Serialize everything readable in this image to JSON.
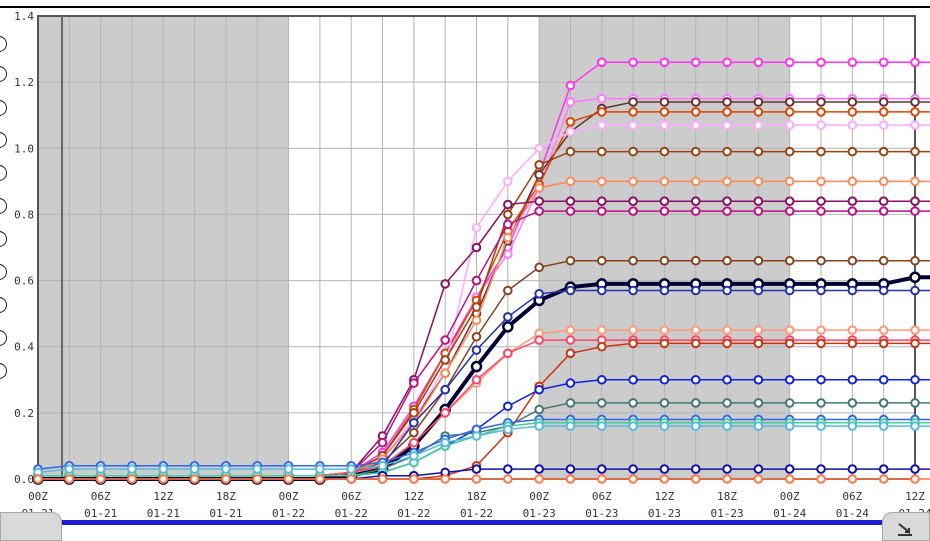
{
  "chart_data": {
    "type": "line",
    "title": "",
    "xlabel": "",
    "ylabel": "",
    "ylim": [
      0,
      1.4
    ],
    "yticks": [
      "0.0",
      "0.2",
      "0.4",
      "0.6",
      "0.8",
      "1.0",
      "1.2",
      "1.4"
    ],
    "xtick_labels": [
      {
        "hour": "00Z",
        "date": "01-21"
      },
      {
        "hour": "06Z",
        "date": "01-21"
      },
      {
        "hour": "12Z",
        "date": "01-21"
      },
      {
        "hour": "18Z",
        "date": "01-21"
      },
      {
        "hour": "00Z",
        "date": "01-22"
      },
      {
        "hour": "06Z",
        "date": "01-22"
      },
      {
        "hour": "12Z",
        "date": "01-22"
      },
      {
        "hour": "18Z",
        "date": "01-22"
      },
      {
        "hour": "00Z",
        "date": "01-23"
      },
      {
        "hour": "06Z",
        "date": "01-23"
      },
      {
        "hour": "12Z",
        "date": "01-23"
      },
      {
        "hour": "18Z",
        "date": "01-23"
      },
      {
        "hour": "00Z",
        "date": "01-24"
      },
      {
        "hour": "06Z",
        "date": "01-24"
      },
      {
        "hour": "12Z",
        "date": "01-24"
      }
    ],
    "x_step_hours": 3,
    "night_shading": [
      [
        0,
        8
      ],
      [
        16,
        24
      ],
      [
        32,
        40
      ],
      [
        48,
        56
      ]
    ],
    "colors": {
      "shading": "#cccccc",
      "grid": "#b4b4b4",
      "frame": "#555555",
      "accent_band": "#1c1cd0"
    },
    "grid": true,
    "series": [
      {
        "color": "#ff33ee",
        "values": [
          0.01,
          0.01,
          0.01,
          0.01,
          0.01,
          0.01,
          0.01,
          0.01,
          0.01,
          0.01,
          0.02,
          0.08,
          0.22,
          0.38,
          0.55,
          0.7,
          0.92,
          1.19,
          1.26,
          1.26,
          1.26,
          1.26,
          1.26,
          1.26,
          1.26,
          1.26,
          1.26,
          1.26,
          1.26,
          1.26
        ]
      },
      {
        "color": "#ff77ff",
        "values": [
          0.01,
          0.01,
          0.01,
          0.01,
          0.01,
          0.01,
          0.01,
          0.01,
          0.01,
          0.01,
          0.02,
          0.07,
          0.2,
          0.36,
          0.55,
          0.68,
          0.88,
          1.14,
          1.15,
          1.15,
          1.15,
          1.15,
          1.15,
          1.15,
          1.15,
          1.15,
          1.15,
          1.15,
          1.15,
          1.15
        ]
      },
      {
        "color": "#663333",
        "values": [
          0.01,
          0.01,
          0.01,
          0.01,
          0.01,
          0.01,
          0.01,
          0.01,
          0.01,
          0.01,
          0.02,
          0.06,
          0.18,
          0.32,
          0.5,
          0.72,
          0.92,
          1.05,
          1.12,
          1.14,
          1.14,
          1.14,
          1.14,
          1.14,
          1.14,
          1.14,
          1.14,
          1.14,
          1.14,
          1.14
        ]
      },
      {
        "color": "#dd4400",
        "values": [
          0.01,
          0.01,
          0.01,
          0.01,
          0.01,
          0.01,
          0.01,
          0.01,
          0.01,
          0.01,
          0.02,
          0.07,
          0.21,
          0.38,
          0.54,
          0.75,
          0.89,
          1.08,
          1.11,
          1.11,
          1.11,
          1.11,
          1.11,
          1.11,
          1.11,
          1.11,
          1.11,
          1.11,
          1.11,
          1.11
        ]
      },
      {
        "color": "#ffaaff",
        "values": [
          0.01,
          0.01,
          0.01,
          0.01,
          0.01,
          0.01,
          0.01,
          0.01,
          0.01,
          0.01,
          0.02,
          0.06,
          0.18,
          0.34,
          0.76,
          0.9,
          1.0,
          1.05,
          1.07,
          1.07,
          1.07,
          1.07,
          1.07,
          1.07,
          1.07,
          1.07,
          1.07,
          1.07,
          1.07,
          1.07
        ]
      },
      {
        "color": "#994411",
        "values": [
          0.01,
          0.01,
          0.01,
          0.01,
          0.01,
          0.01,
          0.01,
          0.01,
          0.01,
          0.01,
          0.02,
          0.07,
          0.2,
          0.36,
          0.52,
          0.8,
          0.95,
          0.99,
          0.99,
          0.99,
          0.99,
          0.99,
          0.99,
          0.99,
          0.99,
          0.99,
          0.99,
          0.99,
          0.99,
          0.99
        ]
      },
      {
        "color": "#ff8855",
        "values": [
          0.01,
          0.01,
          0.01,
          0.01,
          0.01,
          0.01,
          0.01,
          0.01,
          0.01,
          0.01,
          0.02,
          0.06,
          0.17,
          0.32,
          0.48,
          0.73,
          0.88,
          0.9,
          0.9,
          0.9,
          0.9,
          0.9,
          0.9,
          0.9,
          0.9,
          0.9,
          0.9,
          0.9,
          0.9,
          0.9
        ]
      },
      {
        "color": "#881166",
        "values": [
          0.01,
          0.01,
          0.01,
          0.01,
          0.01,
          0.01,
          0.01,
          0.01,
          0.01,
          0.01,
          0.02,
          0.13,
          0.3,
          0.59,
          0.7,
          0.83,
          0.84,
          0.84,
          0.84,
          0.84,
          0.84,
          0.84,
          0.84,
          0.84,
          0.84,
          0.84,
          0.84,
          0.84,
          0.84,
          0.84
        ]
      },
      {
        "color": "#bb1188",
        "values": [
          0.01,
          0.01,
          0.01,
          0.01,
          0.01,
          0.01,
          0.01,
          0.01,
          0.01,
          0.01,
          0.02,
          0.11,
          0.29,
          0.42,
          0.6,
          0.77,
          0.81,
          0.81,
          0.81,
          0.81,
          0.81,
          0.81,
          0.81,
          0.81,
          0.81,
          0.81,
          0.81,
          0.81,
          0.81,
          0.81
        ]
      },
      {
        "color": "#884422",
        "values": [
          0.01,
          0.01,
          0.01,
          0.01,
          0.01,
          0.01,
          0.01,
          0.01,
          0.01,
          0.01,
          0.02,
          0.05,
          0.14,
          0.27,
          0.43,
          0.57,
          0.64,
          0.66,
          0.66,
          0.66,
          0.66,
          0.66,
          0.66,
          0.66,
          0.66,
          0.66,
          0.66,
          0.66,
          0.66,
          0.66
        ]
      },
      {
        "color": "#000033",
        "width": 4,
        "values": [
          0.0,
          0.0,
          0.0,
          0.0,
          0.0,
          0.0,
          0.0,
          0.0,
          0.0,
          0.0,
          0.01,
          0.03,
          0.1,
          0.21,
          0.34,
          0.46,
          0.54,
          0.58,
          0.59,
          0.59,
          0.59,
          0.59,
          0.59,
          0.59,
          0.59,
          0.59,
          0.59,
          0.59,
          0.61,
          0.61
        ]
      },
      {
        "color": "#2233aa",
        "values": [
          0.01,
          0.01,
          0.01,
          0.01,
          0.01,
          0.01,
          0.01,
          0.01,
          0.01,
          0.01,
          0.02,
          0.04,
          0.17,
          0.27,
          0.39,
          0.49,
          0.56,
          0.57,
          0.57,
          0.57,
          0.57,
          0.57,
          0.57,
          0.57,
          0.57,
          0.57,
          0.57,
          0.57,
          0.57,
          0.57
        ]
      },
      {
        "color": "#ff9977",
        "values": [
          0.01,
          0.01,
          0.01,
          0.01,
          0.01,
          0.01,
          0.01,
          0.01,
          0.01,
          0.01,
          0.02,
          0.04,
          0.11,
          0.2,
          0.29,
          0.38,
          0.44,
          0.45,
          0.45,
          0.45,
          0.45,
          0.45,
          0.45,
          0.45,
          0.45,
          0.45,
          0.45,
          0.45,
          0.45,
          0.45
        ]
      },
      {
        "color": "#ff4466",
        "values": [
          0.01,
          0.01,
          0.01,
          0.01,
          0.01,
          0.01,
          0.01,
          0.01,
          0.01,
          0.01,
          0.02,
          0.04,
          0.11,
          0.2,
          0.3,
          0.38,
          0.42,
          0.42,
          0.42,
          0.42,
          0.42,
          0.42,
          0.42,
          0.42,
          0.42,
          0.42,
          0.42,
          0.42,
          0.42,
          0.42
        ]
      },
      {
        "color": "#cc3311",
        "values": [
          0.0,
          0.0,
          0.0,
          0.0,
          0.0,
          0.0,
          0.0,
          0.0,
          0.0,
          0.0,
          0.0,
          0.0,
          0.0,
          0.01,
          0.04,
          0.14,
          0.28,
          0.38,
          0.4,
          0.41,
          0.41,
          0.41,
          0.41,
          0.41,
          0.41,
          0.41,
          0.41,
          0.41,
          0.41,
          0.41
        ]
      },
      {
        "color": "#1122dd",
        "values": [
          0.01,
          0.01,
          0.01,
          0.01,
          0.01,
          0.01,
          0.01,
          0.01,
          0.01,
          0.01,
          0.01,
          0.02,
          0.05,
          0.1,
          0.15,
          0.22,
          0.27,
          0.29,
          0.3,
          0.3,
          0.3,
          0.3,
          0.3,
          0.3,
          0.3,
          0.3,
          0.3,
          0.3,
          0.3,
          0.3
        ]
      },
      {
        "color": "#447777",
        "values": [
          0.01,
          0.01,
          0.01,
          0.01,
          0.01,
          0.01,
          0.01,
          0.01,
          0.01,
          0.01,
          0.01,
          0.03,
          0.07,
          0.13,
          0.14,
          0.16,
          0.21,
          0.23,
          0.23,
          0.23,
          0.23,
          0.23,
          0.23,
          0.23,
          0.23,
          0.23,
          0.23,
          0.23,
          0.23,
          0.23
        ]
      },
      {
        "color": "#3366ee",
        "values": [
          0.03,
          0.04,
          0.04,
          0.04,
          0.04,
          0.04,
          0.04,
          0.04,
          0.04,
          0.04,
          0.04,
          0.05,
          0.08,
          0.12,
          0.15,
          0.17,
          0.18,
          0.18,
          0.18,
          0.18,
          0.18,
          0.18,
          0.18,
          0.18,
          0.18,
          0.18,
          0.18,
          0.18,
          0.18,
          0.18
        ]
      },
      {
        "color": "#44cc99",
        "values": [
          0.01,
          0.01,
          0.01,
          0.01,
          0.01,
          0.01,
          0.01,
          0.01,
          0.01,
          0.01,
          0.01,
          0.02,
          0.05,
          0.1,
          0.13,
          0.16,
          0.17,
          0.17,
          0.17,
          0.17,
          0.17,
          0.17,
          0.17,
          0.17,
          0.17,
          0.17,
          0.17,
          0.17,
          0.17,
          0.17
        ]
      },
      {
        "color": "#55bbdd",
        "values": [
          0.02,
          0.03,
          0.03,
          0.03,
          0.03,
          0.03,
          0.03,
          0.03,
          0.03,
          0.03,
          0.03,
          0.04,
          0.07,
          0.11,
          0.13,
          0.15,
          0.16,
          0.16,
          0.16,
          0.16,
          0.16,
          0.16,
          0.16,
          0.16,
          0.16,
          0.16,
          0.16,
          0.16,
          0.16,
          0.16
        ]
      },
      {
        "color": "#1111aa",
        "values": [
          0.0,
          0.0,
          0.0,
          0.0,
          0.0,
          0.0,
          0.0,
          0.0,
          0.0,
          0.0,
          0.0,
          0.01,
          0.01,
          0.02,
          0.03,
          0.03,
          0.03,
          0.03,
          0.03,
          0.03,
          0.03,
          0.03,
          0.03,
          0.03,
          0.03,
          0.03,
          0.03,
          0.03,
          0.03,
          0.03
        ]
      },
      {
        "color": "#ff7744",
        "values": [
          0.0,
          0.0,
          0.0,
          0.0,
          0.0,
          0.0,
          0.0,
          0.0,
          0.0,
          0.0,
          0.0,
          0.0,
          0.0,
          0.0,
          0.0,
          0.0,
          0.0,
          0.0,
          0.0,
          0.0,
          0.0,
          0.0,
          0.0,
          0.0,
          0.0,
          0.0,
          0.0,
          0.0,
          0.0,
          0.0
        ]
      }
    ]
  }
}
